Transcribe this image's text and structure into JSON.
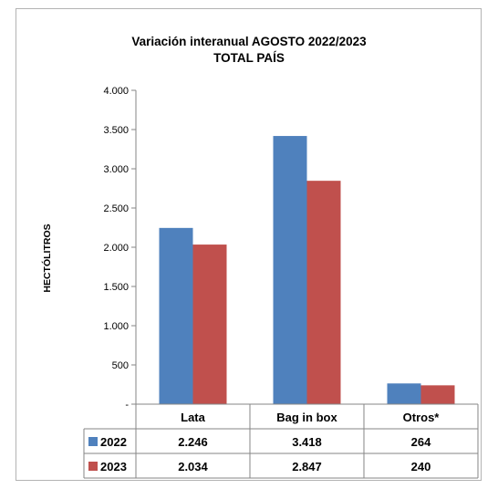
{
  "chart_data": {
    "type": "bar",
    "title_lines": [
      "Variación interanual  AGOSTO 2022/2023",
      "TOTAL PAÍS"
    ],
    "xlabel": "",
    "ylabel": "HECTÓLITROS",
    "categories": [
      "Lata",
      "Bag in box",
      "Otros*"
    ],
    "series": [
      {
        "name": "2022",
        "values": [
          2246,
          3418,
          264
        ],
        "value_labels": [
          "2.246",
          "3.418",
          "264"
        ],
        "color": "#4f81bd"
      },
      {
        "name": "2023",
        "values": [
          2034,
          2847,
          240
        ],
        "value_labels": [
          "2.034",
          "2.847",
          "240"
        ],
        "color": "#c0504d"
      }
    ],
    "ylim": [
      0,
      4000
    ],
    "yticks": [
      0,
      500,
      1000,
      1500,
      2000,
      2500,
      3000,
      3500,
      4000
    ],
    "ytick_labels": [
      "-",
      "500",
      "1.000",
      "1.500",
      "2.000",
      "2.500",
      "3.000",
      "3.500",
      "4.000"
    ],
    "grid": false,
    "legend": "data-table"
  }
}
